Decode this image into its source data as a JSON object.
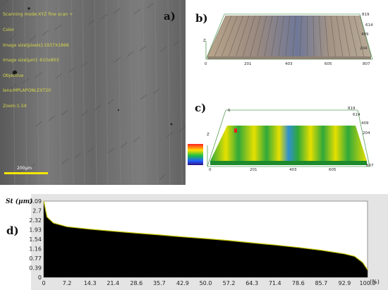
{
  "panel_a": {
    "label": "a)",
    "overlay_lines": [
      "Scanning mode:XYZ fine scan +",
      "Color",
      "Image size[pixels]:1937X1866",
      "Image size[µm]: 610x803",
      "Objective",
      "lens:MPLAPONLEXT20",
      "Zoom:1.5X"
    ],
    "scale_bar": "200µm"
  },
  "panel_b": {
    "label": "b)",
    "x_ticks": [
      "0",
      "201",
      "403",
      "605",
      "807"
    ],
    "y_ticks": [
      "819",
      "614",
      "409",
      "204"
    ],
    "z_label": "Z"
  },
  "panel_c": {
    "label": "c)",
    "x_ticks": [
      "0",
      "201",
      "403",
      "605",
      "807"
    ],
    "y_ticks": [
      "819",
      "614",
      "409",
      "204"
    ],
    "z_label": "Z",
    "top_tick": "6"
  },
  "panel_d": {
    "label": "d)",
    "unit": "(%)"
  },
  "chart_data": {
    "type": "area",
    "ylabel": "St (µm)",
    "xlabel": "(%)",
    "x_ticks": [
      "0",
      "7.2",
      "14.3",
      "21.4",
      "28.6",
      "35.7",
      "42.9",
      "50.0",
      "57.2",
      "64.3",
      "71.4",
      "78.6",
      "85.7",
      "92.9",
      "100.0"
    ],
    "y_ticks": [
      "3.09",
      "2.7",
      "2.32",
      "1.93",
      "1.54",
      "1.16",
      "0.77",
      "0.39",
      "0"
    ],
    "xlim": [
      0,
      100
    ],
    "ylim": [
      0,
      3.09
    ],
    "x": [
      0,
      1,
      3,
      7.2,
      14.3,
      21.4,
      28.6,
      35.7,
      42.9,
      50.0,
      57.2,
      64.3,
      71.4,
      78.6,
      85.7,
      92.9,
      96,
      98.5,
      100
    ],
    "y": [
      3.09,
      2.45,
      2.2,
      2.05,
      1.95,
      1.87,
      1.79,
      1.72,
      1.64,
      1.57,
      1.49,
      1.4,
      1.31,
      1.21,
      1.1,
      0.95,
      0.85,
      0.6,
      0.3
    ],
    "fill_color": "#000000",
    "edge_color": "#c8c800"
  }
}
